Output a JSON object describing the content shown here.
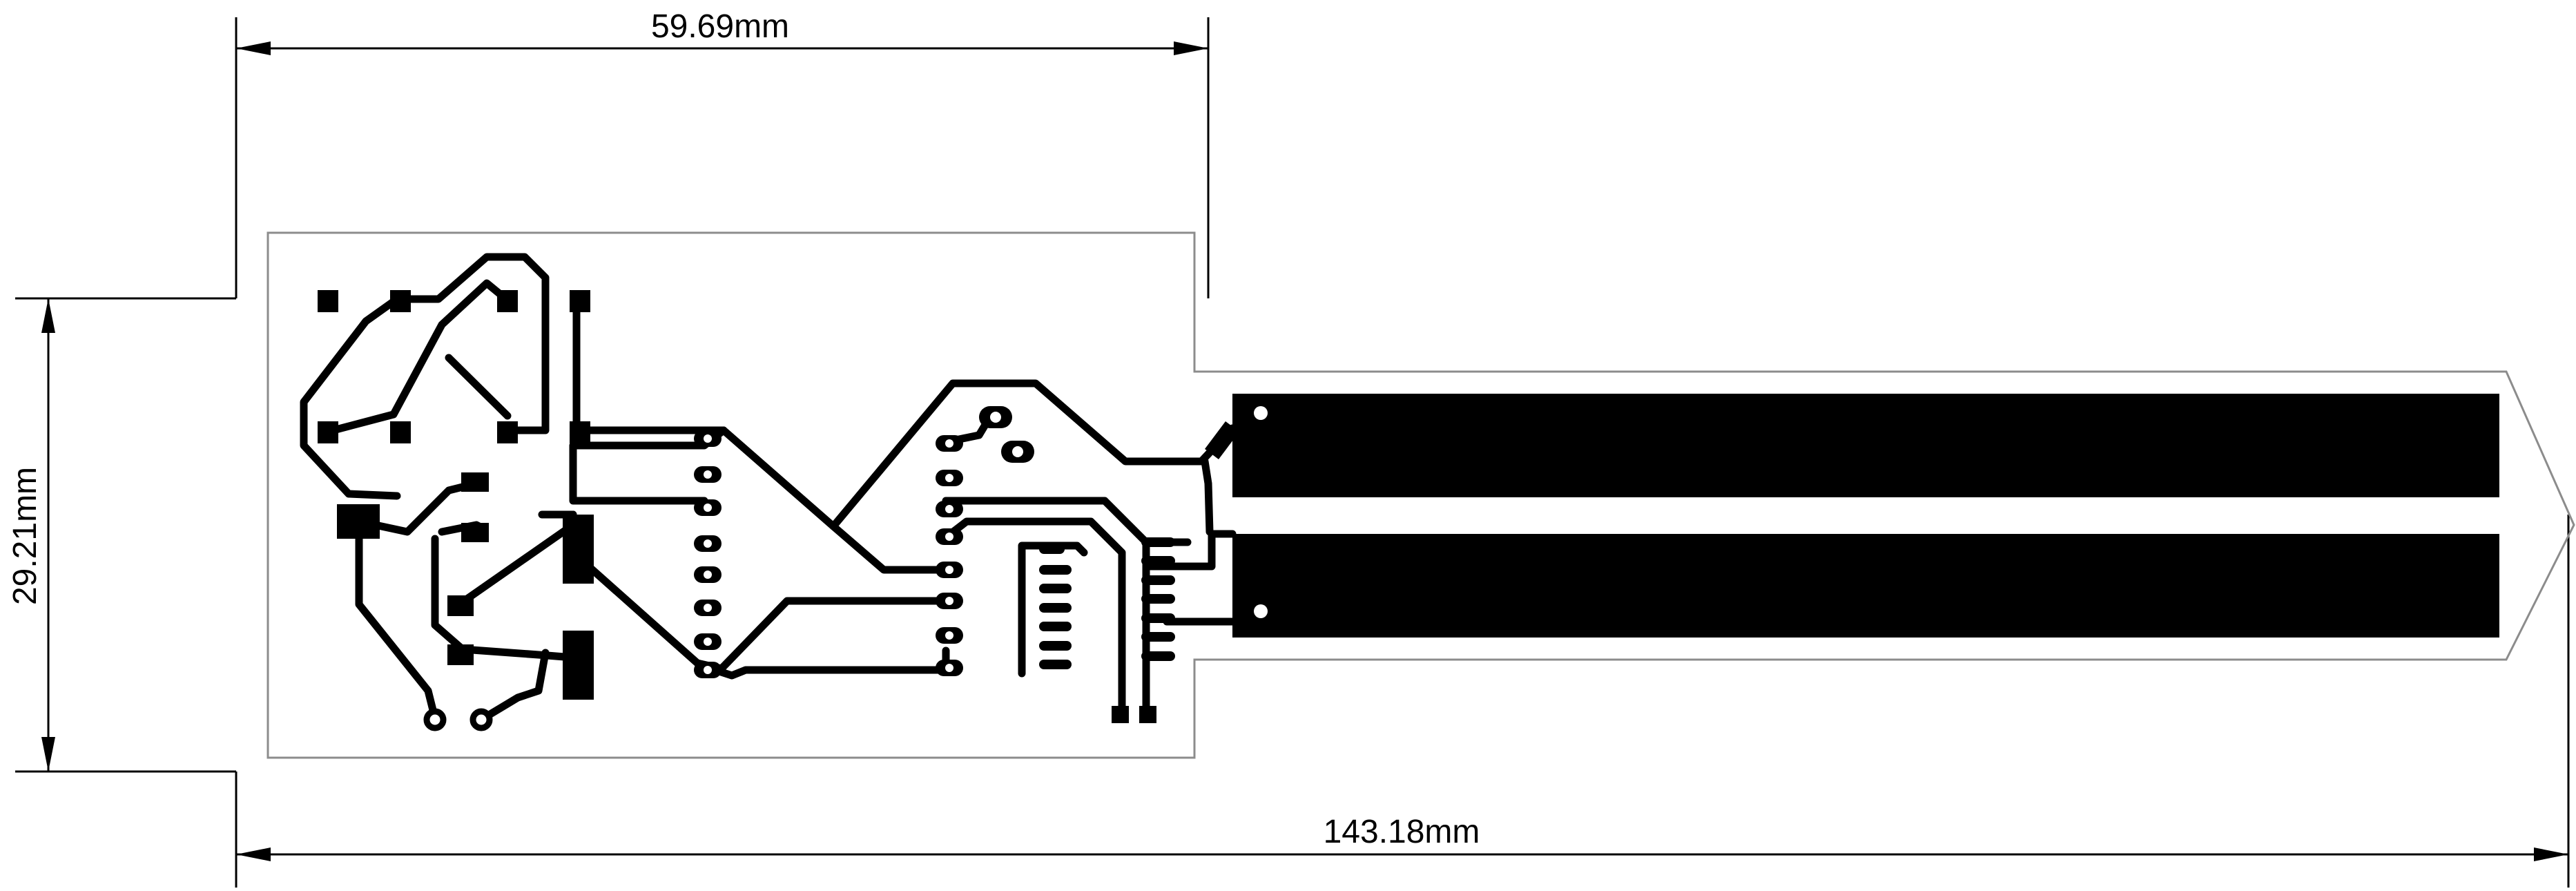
{
  "dimensions": {
    "top_width": "59.69mm",
    "height": "29.21mm",
    "total_length": "143.18mm"
  },
  "colors": {
    "copper": "#000000",
    "board_outline": "#8c8c8c",
    "dimension": "#000000",
    "background": "#ffffff"
  }
}
